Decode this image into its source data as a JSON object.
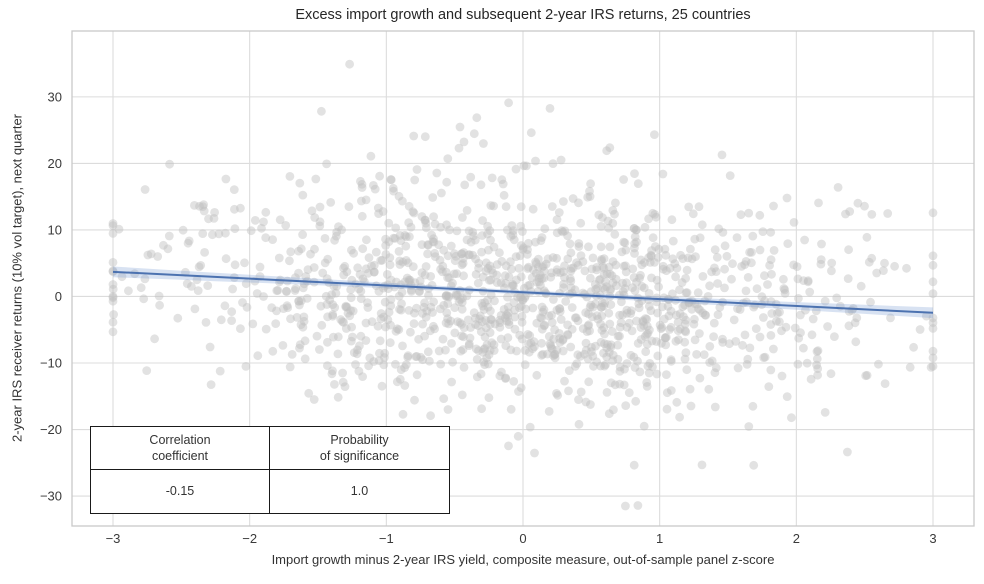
{
  "chart_data": {
    "type": "scatter",
    "title": "Excess import growth and subsequent 2-year IRS returns, 25 countries",
    "xlabel": "Import growth minus 2-year IRS yield, composite measure, out-of-sample panel z-score",
    "ylabel": "2-year IRS receiver returns (10% vol target), next quarter",
    "xticks": [
      -3,
      -2,
      -1,
      0,
      1,
      2,
      3
    ],
    "yticks": [
      -30,
      -20,
      -10,
      0,
      10,
      20,
      30
    ],
    "xlim": [
      -3.3,
      3.3
    ],
    "ylim": [
      -34.5,
      39.9
    ],
    "grid": true,
    "grid_color": "#dcdcdc",
    "spine_color": "#c9c9c9",
    "n_points": 1400,
    "x_winsorized_at": [
      -3,
      3
    ],
    "point_color": "#bebebe",
    "point_opacity": 0.45,
    "point_radius": 4.4,
    "regression": {
      "x_start": -3,
      "y_start": 3.7,
      "x_end": 3,
      "y_end": -2.45,
      "slope": -1.025,
      "intercept": 0.625,
      "line_color": "#4c72b0",
      "band_color": "#7f9fd4",
      "band_opacity": 0.3,
      "band_halfwidth_center": 0.3,
      "band_halfwidth_edge": 0.8
    },
    "scatter_generation": {
      "seed": 20240521,
      "x_sd": 1.25,
      "y_noise_sd": 7.8,
      "y_outlier_sd": 14.0,
      "y_outlier_frac": 0.07,
      "y_clamp": [
        -31.5,
        36.5
      ]
    },
    "stats_table": {
      "columns": [
        {
          "header_line1": "Correlation",
          "header_line2": "coefficient",
          "value": "-0.15"
        },
        {
          "header_line1": "Probability",
          "header_line2": "of significance",
          "value": "1.0"
        }
      ]
    }
  }
}
